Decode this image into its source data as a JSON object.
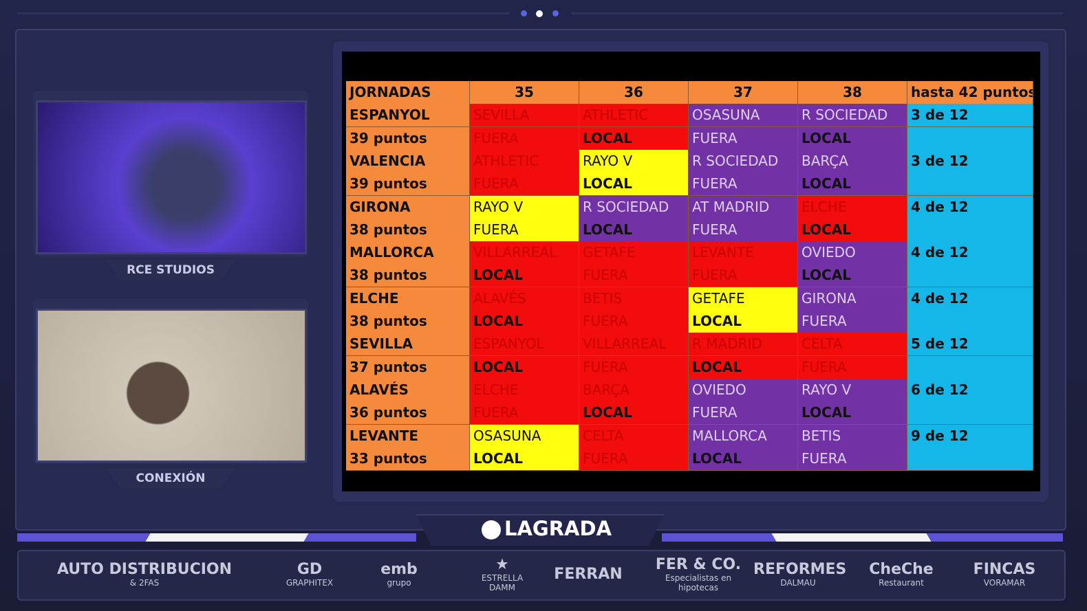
{
  "broadcast": {
    "brand": "LAGRADA",
    "videos": [
      {
        "label": "RCE STUDIOS",
        "tint": "#5a3fd0"
      },
      {
        "label": "CONEXIÓN",
        "tint": "#cfc6b8"
      }
    ]
  },
  "table": {
    "header_fill": "#f5893c",
    "label_fill": "#f5893c",
    "note_fill": "#15b6e8",
    "columns": [
      "JORNADAS",
      "35",
      "36",
      "37",
      "38",
      "hasta 42 puntos"
    ],
    "rows": [
      {
        "label": "ESPANYOL",
        "matches": [
          {
            "text": "SEVILLA",
            "fill": "#f20c0c"
          },
          {
            "text": "ATHLETIC",
            "fill": "#f20c0c"
          },
          {
            "text": "OSASUNA",
            "fill": "#7232a6"
          },
          {
            "text": "R SOCIEDAD",
            "fill": "#7232a6"
          }
        ],
        "note": "3 de 12"
      },
      {
        "label": "39 puntos",
        "matches": [
          {
            "text": "FUERA",
            "fill": "#f20c0c"
          },
          {
            "text": "LOCAL",
            "fill": "#f20c0c",
            "bold": true
          },
          {
            "text": "FUERA",
            "fill": "#7232a6"
          },
          {
            "text": "LOCAL",
            "fill": "#7232a6",
            "bold": true
          }
        ]
      },
      {
        "label": "VALENCIA",
        "matches": [
          {
            "text": "ATHLETIC",
            "fill": "#f20c0c"
          },
          {
            "text": "RAYO V",
            "fill": "#ffff10"
          },
          {
            "text": "R SOCIEDAD",
            "fill": "#7232a6"
          },
          {
            "text": "BARÇA",
            "fill": "#7232a6"
          }
        ],
        "note": "3 de 12"
      },
      {
        "label": "39 puntos",
        "matches": [
          {
            "text": "FUERA",
            "fill": "#f20c0c"
          },
          {
            "text": "LOCAL",
            "fill": "#ffff10",
            "bold": true
          },
          {
            "text": "FUERA",
            "fill": "#7232a6"
          },
          {
            "text": "LOCAL",
            "fill": "#7232a6",
            "bold": true
          }
        ]
      },
      {
        "label": "GIRONA",
        "matches": [
          {
            "text": "RAYO V",
            "fill": "#ffff10"
          },
          {
            "text": "R SOCIEDAD",
            "fill": "#7232a6"
          },
          {
            "text": "AT MADRID",
            "fill": "#7232a6"
          },
          {
            "text": "ELCHE",
            "fill": "#f20c0c"
          }
        ],
        "note": "4 de 12"
      },
      {
        "label": "38 puntos",
        "matches": [
          {
            "text": "FUERA",
            "fill": "#ffff10"
          },
          {
            "text": "LOCAL",
            "fill": "#7232a6",
            "bold": true
          },
          {
            "text": "FUERA",
            "fill": "#7232a6"
          },
          {
            "text": "LOCAL",
            "fill": "#f20c0c",
            "bold": true
          }
        ]
      },
      {
        "label": "MALLORCA",
        "matches": [
          {
            "text": "VILLARREAL",
            "fill": "#f20c0c"
          },
          {
            "text": "GETAFE",
            "fill": "#f20c0c"
          },
          {
            "text": "LEVANTE",
            "fill": "#f20c0c"
          },
          {
            "text": "OVIEDO",
            "fill": "#7232a6"
          }
        ],
        "note": "4 de 12"
      },
      {
        "label": "38 puntos",
        "matches": [
          {
            "text": "LOCAL",
            "fill": "#f20c0c",
            "bold": true
          },
          {
            "text": "FUERA",
            "fill": "#f20c0c"
          },
          {
            "text": "FUERA",
            "fill": "#f20c0c"
          },
          {
            "text": "LOCAL",
            "fill": "#7232a6",
            "bold": true
          }
        ]
      },
      {
        "label": "ELCHE",
        "matches": [
          {
            "text": "ALAVÉS",
            "fill": "#f20c0c"
          },
          {
            "text": "BETIS",
            "fill": "#f20c0c"
          },
          {
            "text": "GETAFE",
            "fill": "#ffff10"
          },
          {
            "text": "GIRONA",
            "fill": "#7232a6"
          }
        ],
        "note": "4 de 12"
      },
      {
        "label": "38 puntos",
        "matches": [
          {
            "text": "LOCAL",
            "fill": "#f20c0c",
            "bold": true
          },
          {
            "text": "FUERA",
            "fill": "#f20c0c"
          },
          {
            "text": "LOCAL",
            "fill": "#ffff10",
            "bold": true
          },
          {
            "text": "FUERA",
            "fill": "#7232a6"
          }
        ]
      },
      {
        "label": "SEVILLA",
        "matches": [
          {
            "text": "ESPANYOL",
            "fill": "#f20c0c"
          },
          {
            "text": "VILLARREAL",
            "fill": "#f20c0c"
          },
          {
            "text": "R MADRID",
            "fill": "#f20c0c"
          },
          {
            "text": "CELTA",
            "fill": "#f20c0c"
          }
        ],
        "note": "5 de 12"
      },
      {
        "label": "37 puntos",
        "matches": [
          {
            "text": "LOCAL",
            "fill": "#f20c0c",
            "bold": true
          },
          {
            "text": "FUERA",
            "fill": "#f20c0c"
          },
          {
            "text": "LOCAL",
            "fill": "#f20c0c",
            "bold": true
          },
          {
            "text": "FUERA",
            "fill": "#f20c0c"
          }
        ]
      },
      {
        "label": "ALAVÉS",
        "matches": [
          {
            "text": "ELCHE",
            "fill": "#f20c0c"
          },
          {
            "text": "BARÇA",
            "fill": "#f20c0c"
          },
          {
            "text": "OVIEDO",
            "fill": "#7232a6"
          },
          {
            "text": "RAYO V",
            "fill": "#7232a6"
          }
        ],
        "note": "6 de 12"
      },
      {
        "label": "36 puntos",
        "matches": [
          {
            "text": "FUERA",
            "fill": "#f20c0c"
          },
          {
            "text": "LOCAL",
            "fill": "#f20c0c",
            "bold": true
          },
          {
            "text": "FUERA",
            "fill": "#7232a6"
          },
          {
            "text": "LOCAL",
            "fill": "#7232a6",
            "bold": true
          }
        ]
      },
      {
        "label": "LEVANTE",
        "matches": [
          {
            "text": "OSASUNA",
            "fill": "#ffff10"
          },
          {
            "text": "CELTA",
            "fill": "#f20c0c"
          },
          {
            "text": "MALLORCA",
            "fill": "#7232a6"
          },
          {
            "text": "BETIS",
            "fill": "#7232a6"
          }
        ],
        "note": "9 de 12"
      },
      {
        "label": "33 puntos",
        "matches": [
          {
            "text": "LOCAL",
            "fill": "#ffff10",
            "bold": true
          },
          {
            "text": "FUERA",
            "fill": "#f20c0c"
          },
          {
            "text": "LOCAL",
            "fill": "#7232a6",
            "bold": true
          },
          {
            "text": "FUERA",
            "fill": "#7232a6"
          }
        ]
      }
    ]
  },
  "sponsors": [
    [
      "AUTO DISTRIBUCION",
      "& 2FAS"
    ],
    [
      "GD",
      "GRAPHITEX"
    ],
    [
      "emb",
      "grupo"
    ],
    [
      "★",
      "ESTRELLA",
      "DAMM"
    ],
    [
      "FERRAN"
    ],
    [
      "FER & CO.",
      "Especialistas en hipotecas"
    ],
    [
      "REFORMES",
      "DALMAU"
    ],
    [
      "CheChe",
      "Restaurant"
    ],
    [
      "FINCAS",
      "VORAMAR"
    ]
  ]
}
